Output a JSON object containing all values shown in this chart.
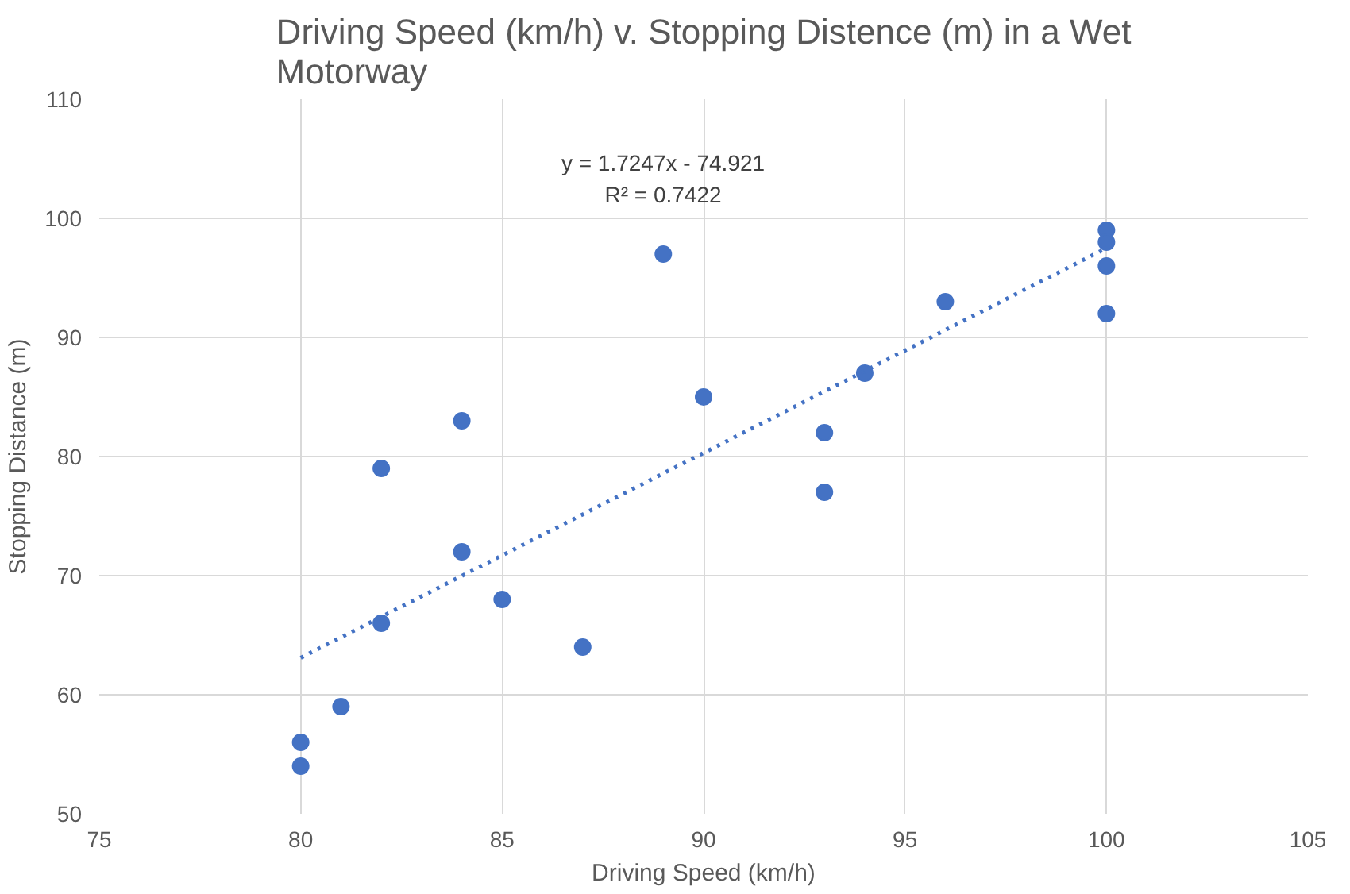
{
  "chart_data": {
    "type": "scatter",
    "title": "Driving Speed (km/h) v. Stopping Distence (m) in a Wet Motorway",
    "xlabel": "Driving Speed (km/h)",
    "ylabel": "Stopping Distance (m)",
    "xlim": [
      75,
      105
    ],
    "xticks": [
      75,
      80,
      85,
      90,
      95,
      100,
      105
    ],
    "ylim": [
      50,
      110
    ],
    "yticks": [
      50,
      60,
      70,
      80,
      90,
      100,
      110
    ],
    "grid": true,
    "series": [
      {
        "marker": "circle",
        "color": "#4472c4",
        "x": [
          80,
          80,
          81,
          82,
          82,
          84,
          84,
          85,
          87,
          89,
          90,
          93,
          93,
          94,
          96,
          100,
          100,
          100,
          100
        ],
        "values": [
          56,
          54,
          59,
          79,
          66,
          83,
          72,
          68,
          64,
          97,
          85,
          82,
          77,
          87,
          93,
          99,
          98,
          96,
          92
        ]
      },
      {
        "type": "line",
        "color": "#4472c4",
        "line_style": "dotted",
        "x": [
          80,
          100
        ],
        "values": [
          63.1,
          97.5
        ]
      }
    ],
    "annotations": [
      "y = 1.7247x - 74.921",
      "R² = 0.7422"
    ]
  }
}
